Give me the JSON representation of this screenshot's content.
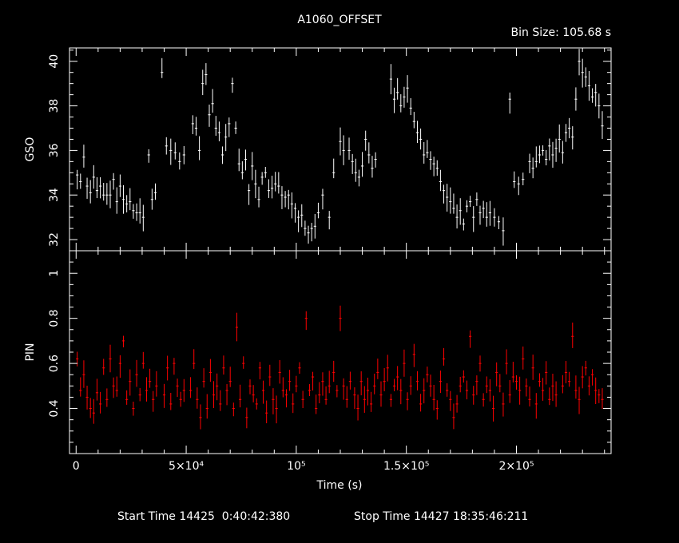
{
  "title": "A1060_OFFSET",
  "bin_size": "Bin Size: 105.68 s",
  "footer": {
    "start": "Start Time 14425  0:40:42:380",
    "stop": "Stop Time 14427 18:35:46:211"
  },
  "colors": {
    "background": "#000000",
    "frame": "#ffffff",
    "gso": "#ffffff",
    "pin": "#ff0000"
  },
  "chart_data": [
    {
      "type": "scatter",
      "panel": "top",
      "ylabel": "GSO",
      "xlabel": "",
      "xlim": [
        -3000,
        243000
      ],
      "ylim": [
        31.5,
        40.6
      ],
      "yticks": [
        {
          "value": 32,
          "label": "32"
        },
        {
          "value": 34,
          "label": "34"
        },
        {
          "value": 36,
          "label": "36"
        },
        {
          "value": 38,
          "label": "38"
        },
        {
          "value": 40,
          "label": "40"
        }
      ],
      "xticks": [
        0,
        50000,
        100000,
        150000,
        200000
      ],
      "error_bars": true,
      "series": [
        {
          "color": "#ffffff",
          "segments": [
            {
              "x": [
                500,
                2000,
                3500,
                5000,
                6500,
                8000,
                9500,
                11000,
                12500,
                14000,
                15500,
                17000,
                18500,
                20000,
                21500,
                23000,
                24500,
                26000,
                27500,
                29000,
                30500
              ],
              "y": [
                34.9,
                34.6,
                35.7,
                34.4,
                34.1,
                34.8,
                34.2,
                34.4,
                34.0,
                34.0,
                34.0,
                34.7,
                33.7,
                34.4,
                33.8,
                33.6,
                33.7,
                33.3,
                33.2,
                33.2,
                33.0
              ]
            },
            {
              "x": [
                33000,
                34500,
                36000
              ],
              "y": [
                35.8,
                33.8,
                34.1
              ]
            },
            {
              "x": [
                39000,
                41000,
                43000,
                45000,
                47000,
                49000
              ],
              "y": [
                39.5,
                36.2,
                36.0,
                35.9,
                35.5,
                35.8
              ]
            },
            {
              "x": [
                53000,
                54500,
                56000,
                57500,
                59000,
                60500,
                62000,
                63500,
                65000,
                66500,
                68000,
                69500,
                71000,
                72500
              ],
              "y": [
                37.2,
                37.0,
                36.0,
                39.0,
                39.4,
                37.6,
                38.1,
                37.0,
                36.8,
                35.8,
                36.6,
                37.2,
                39.0,
                37.0
              ]
            },
            {
              "x": [
                74000,
                75500,
                77000,
                78500,
                80000,
                81500,
                83000,
                84500,
                86000,
                87500,
                89000,
                90500,
                92000,
                93500,
                95000,
                96500,
                98000,
                99500,
                101000,
                102500,
                104000,
                105500,
                107000,
                108500,
                110000
              ],
              "y": [
                35.4,
                35.0,
                35.6,
                34.2,
                35.3,
                34.5,
                33.8,
                34.8,
                35.0,
                34.2,
                34.3,
                34.5,
                34.4,
                34.0,
                33.9,
                34.0,
                33.6,
                33.4,
                33.0,
                33.1,
                32.5,
                32.3,
                32.5,
                32.6,
                33.2
              ]
            },
            {
              "x": [
                112000,
                115000,
                117000
              ],
              "y": [
                34.0,
                33.0,
                35.0
              ]
            },
            {
              "x": [
                120000,
                121500
              ],
              "y": [
                36.4,
                36.0
              ]
            },
            {
              "x": [
                124000,
                125500,
                127000,
                128500,
                130000,
                131500,
                133000,
                134500,
                136000
              ],
              "y": [
                36.0,
                35.5,
                35.0,
                34.8,
                35.3,
                36.5,
                35.8,
                35.2,
                35.6
              ]
            },
            {
              "x": [
                143000,
                144500,
                146000,
                147500,
                149000,
                150500,
                152000,
                153500,
                155000,
                156500,
                158000,
                159500,
                161000,
                162500,
                164000,
                165500,
                167000,
                168500,
                170000,
                171500,
                173000,
                174500,
                176000,
                177500,
                179000,
                180500,
                182000,
                183500,
                185000,
                186500,
                188000
              ],
              "y": [
                39.2,
                38.3,
                38.6,
                38.0,
                38.4,
                38.8,
                37.9,
                37.3,
                36.8,
                36.5,
                35.8,
                35.9,
                35.6,
                35.4,
                35.2,
                34.6,
                34.2,
                33.9,
                33.7,
                33.4,
                33.0,
                33.3,
                32.7,
                33.5,
                33.7,
                33.0,
                33.8,
                33.2,
                33.4,
                33.0,
                33.2
              ]
            },
            {
              "x": [
                190000,
                192000,
                194000
              ],
              "y": [
                33.0,
                32.8,
                32.4
              ]
            },
            {
              "x": [
                197000,
                199000,
                201000,
                203000
              ],
              "y": [
                38.3,
                34.6,
                34.5,
                34.7
              ]
            },
            {
              "x": [
                206000,
                207500,
                209000,
                210500,
                212000,
                213500,
                215000,
                216500,
                218000,
                219500,
                221000,
                222500,
                224000,
                225500,
                227000,
                228500,
                230000,
                231500,
                233000,
                234500,
                236000,
                237500,
                239000
              ],
              "y": [
                35.5,
                35.2,
                35.5,
                35.8,
                36.0,
                35.6,
                36.2,
                35.8,
                36.1,
                36.5,
                35.9,
                36.8,
                37.0,
                36.6,
                38.3,
                40.0,
                39.5,
                39.3,
                38.9,
                38.4,
                38.6,
                38.0,
                37.1
              ]
            }
          ]
        }
      ]
    },
    {
      "type": "scatter",
      "panel": "bottom",
      "ylabel": "PIN",
      "xlabel": "Time (s)",
      "xlim": [
        -3000,
        243000
      ],
      "ylim": [
        0.2,
        1.1
      ],
      "yticks": [
        {
          "value": 0.4,
          "label": "0.4"
        },
        {
          "value": 0.6,
          "label": "0.6"
        },
        {
          "value": 0.8,
          "label": "0.8"
        },
        {
          "value": 1.0,
          "label": "1"
        }
      ],
      "xticks": [
        {
          "value": 0,
          "label": "0"
        },
        {
          "value": 50000,
          "label": "5×10⁴"
        },
        {
          "value": 100000,
          "label": "10⁵"
        },
        {
          "value": 150000,
          "label": "1.5×10⁵"
        },
        {
          "value": 200000,
          "label": "2×10⁵"
        }
      ],
      "error_bars": true,
      "series": [
        {
          "color": "#ff0000",
          "segments": [
            {
              "x": [
                500,
                2000,
                3500,
                5000,
                6500,
                8000,
                9500,
                11000,
                12500,
                14000,
                15500,
                17000,
                18500,
                20000,
                21500,
                23000,
                24500,
                26000,
                27500,
                29000,
                30500,
                32000,
                33500,
                35000,
                36500
              ],
              "y": [
                0.62,
                0.48,
                0.55,
                0.45,
                0.4,
                0.38,
                0.47,
                0.42,
                0.58,
                0.44,
                0.62,
                0.5,
                0.48,
                0.6,
                0.7,
                0.44,
                0.52,
                0.4,
                0.55,
                0.46,
                0.6,
                0.48,
                0.52,
                0.44,
                0.5
              ]
            },
            {
              "x": [
                40000,
                41500,
                43000,
                44500,
                46000,
                47500,
                49000
              ],
              "y": [
                0.46,
                0.58,
                0.42,
                0.6,
                0.5,
                0.44,
                0.48
              ]
            },
            {
              "x": [
                52000,
                53500,
                55000,
                56500,
                58000,
                59500,
                61000,
                62500,
                64000,
                65500,
                67000,
                68500,
                70000,
                71500,
                73000,
                74500,
                76000,
                77500,
                79000,
                80500,
                82000,
                83500,
                85000,
                86500,
                88000,
                89500,
                91000,
                92500,
                94000,
                95500,
                97000,
                98500,
                100000,
                101500,
                103000,
                104500,
                106000,
                107500,
                109000,
                110500,
                112000,
                113500,
                115000
              ],
              "y": [
                0.48,
                0.6,
                0.44,
                0.36,
                0.52,
                0.4,
                0.56,
                0.46,
                0.5,
                0.42,
                0.58,
                0.48,
                0.52,
                0.4,
                0.76,
                0.44,
                0.6,
                0.36,
                0.5,
                0.46,
                0.42,
                0.58,
                0.48,
                0.38,
                0.54,
                0.44,
                0.4,
                0.56,
                0.48,
                0.46,
                0.52,
                0.42,
                0.5,
                0.58,
                0.44,
                0.8,
                0.48,
                0.54,
                0.4,
                0.46,
                0.52,
                0.44,
                0.5
              ]
            },
            {
              "x": [
                117000,
                118500,
                120000,
                121500,
                123000,
                124500
              ],
              "y": [
                0.56,
                0.48,
                0.8,
                0.5,
                0.44,
                0.52
              ]
            },
            {
              "x": [
                126500,
                128000,
                129500,
                131000,
                132500,
                134000,
                135500,
                137000,
                138500,
                140000,
                141500,
                143000,
                144500,
                146000,
                147500,
                149000,
                150500,
                152000,
                153500,
                155000,
                156500,
                158000,
                159500,
                161000,
                162500,
                164000,
                165500,
                167000,
                168500,
                170000,
                171500,
                173000,
                174500,
                176000,
                177500,
                179000,
                180500,
                182000,
                183500,
                185000,
                186500,
                188000,
                189500,
                191000,
                192500,
                194000,
                195500,
                197000,
                198500,
                200000,
                201500,
                203000,
                204500,
                206000,
                207500,
                209000,
                210500,
                212000,
                213500,
                215000,
                216500,
                218000
              ],
              "y": [
                0.46,
                0.4,
                0.52,
                0.44,
                0.48,
                0.42,
                0.5,
                0.56,
                0.46,
                0.52,
                0.58,
                0.44,
                0.5,
                0.54,
                0.48,
                0.6,
                0.44,
                0.5,
                0.64,
                0.52,
                0.42,
                0.48,
                0.55,
                0.5,
                0.44,
                0.4,
                0.52,
                0.62,
                0.48,
                0.44,
                0.36,
                0.42,
                0.5,
                0.54,
                0.48,
                0.72,
                0.46,
                0.52,
                0.6,
                0.44,
                0.5,
                0.48,
                0.4,
                0.56,
                0.5,
                0.42,
                0.6,
                0.46,
                0.54,
                0.52,
                0.48,
                0.62,
                0.5,
                0.44,
                0.58,
                0.42,
                0.52,
                0.48,
                0.56,
                0.44,
                0.5,
                0.46
              ]
            },
            {
              "x": [
                221000,
                222500,
                224000,
                225500,
                227000,
                228500,
                230000,
                231500,
                233000,
                234500,
                236000,
                237500,
                239000
              ],
              "y": [
                0.5,
                0.56,
                0.52,
                0.72,
                0.48,
                0.44,
                0.54,
                0.58,
                0.5,
                0.55,
                0.48,
                0.46,
                0.44
              ]
            }
          ]
        }
      ]
    }
  ]
}
